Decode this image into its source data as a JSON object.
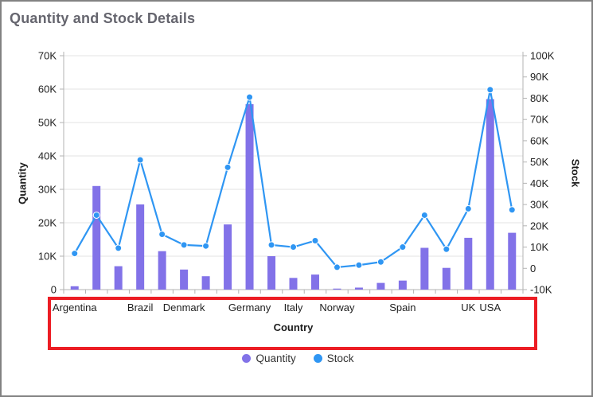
{
  "title": "Quantity and Stock Details",
  "colors": {
    "bar": "#8272e8",
    "line": "#2f96f3",
    "annotation_red": "#ec1d24",
    "gridline": "#e3e3e3",
    "axis_line": "#b3b3b3",
    "tick_label": "#212121",
    "title_gray": "#65656e",
    "frame_border": "#828282"
  },
  "annotation": {
    "type": "highlight-rectangle",
    "color": "#ec1d24",
    "region": "x-axis country labels and Country axis title"
  },
  "chart_data": {
    "type": "bar",
    "subtype": "combo bar + line, dual y-axes",
    "title": "Quantity and Stock Details",
    "categories": [
      "Argentina",
      "",
      "",
      "Brazil",
      "",
      "Denmark",
      "",
      "",
      "Germany",
      "",
      "Italy",
      "",
      "Norway",
      "",
      "",
      "Spain",
      "",
      "",
      "UK",
      "USA",
      ""
    ],
    "categories_note": "21 data points; overlapping x labels hidden, only 9 visible",
    "series": [
      {
        "name": "Quantity",
        "type": "bar",
        "axis": "left",
        "color": "#8272e8",
        "values": [
          1000,
          31000,
          7000,
          25500,
          11500,
          6000,
          4000,
          19500,
          55500,
          10000,
          3500,
          4500,
          300,
          600,
          2000,
          2700,
          12500,
          6500,
          15500,
          57000,
          17000
        ]
      },
      {
        "name": "Stock",
        "type": "line",
        "axis": "right",
        "color": "#2f96f3",
        "values": [
          7000,
          25000,
          9500,
          51000,
          16000,
          11000,
          10500,
          47500,
          80500,
          11000,
          10000,
          13000,
          500,
          1500,
          3000,
          10000,
          25000,
          9000,
          28000,
          84000,
          27500
        ]
      }
    ],
    "x_axis": {
      "title": "Country"
    },
    "left_axis": {
      "title": "Quantity",
      "min": 0,
      "max": 70000,
      "tick_step": 10000,
      "tick_labels": [
        "0",
        "10K",
        "20K",
        "30K",
        "40K",
        "50K",
        "60K",
        "70K"
      ]
    },
    "right_axis": {
      "title": "Stock",
      "min": -10000,
      "max": 100000,
      "tick_step": 10000,
      "tick_labels": [
        "-10K",
        "0",
        "10K",
        "20K",
        "30K",
        "40K",
        "50K",
        "60K",
        "70K",
        "80K",
        "90K",
        "100K"
      ]
    },
    "grid": true,
    "legend": {
      "position": "bottom",
      "items": [
        {
          "label": "Quantity",
          "color": "#8272e8",
          "marker": "circle"
        },
        {
          "label": "Stock",
          "color": "#2f96f3",
          "marker": "circle"
        }
      ]
    }
  }
}
